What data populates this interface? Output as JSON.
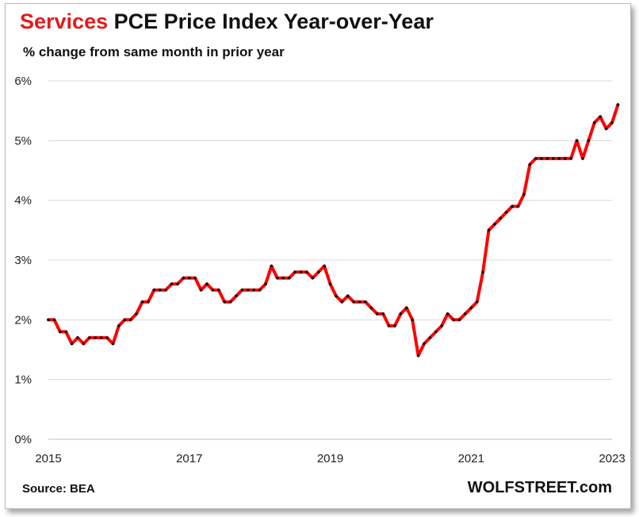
{
  "title": {
    "highlight": "Services",
    "rest": " PCE Price Index Year-over-Year"
  },
  "subtitle": "% change from same month in prior year",
  "source": "Source: BEA",
  "brand": "WOLFSTREET.com",
  "colors": {
    "line": "#ff0000",
    "highlight": "#e41b1b",
    "grid": "#d9d9d9",
    "marker": "#111111"
  },
  "chart_data": {
    "type": "line",
    "title": "Services PCE Price Index Year-over-Year",
    "subtitle": "% change from same month in prior year",
    "ylim": [
      0,
      6
    ],
    "yticks": [
      0,
      1,
      2,
      3,
      4,
      5,
      6
    ],
    "ytick_labels": [
      "0%",
      "1%",
      "2%",
      "3%",
      "4%",
      "5%",
      "6%"
    ],
    "xlim": [
      2015.0,
      2023.0
    ],
    "xticks": [
      2015,
      2017,
      2019,
      2021,
      2023
    ],
    "xtick_labels": [
      "2015",
      "2017",
      "2019",
      "2021",
      "2023"
    ],
    "grid": "horizontal",
    "legend": "none",
    "series": [
      {
        "x_start": "2015-01",
        "frequency": "monthly",
        "values": [
          2.0,
          2.0,
          1.8,
          1.8,
          1.6,
          1.7,
          1.6,
          1.7,
          1.7,
          1.7,
          1.7,
          1.6,
          1.9,
          2.0,
          2.0,
          2.1,
          2.3,
          2.3,
          2.5,
          2.5,
          2.5,
          2.6,
          2.6,
          2.7,
          2.7,
          2.7,
          2.5,
          2.6,
          2.5,
          2.5,
          2.3,
          2.3,
          2.4,
          2.5,
          2.5,
          2.5,
          2.5,
          2.6,
          2.9,
          2.7,
          2.7,
          2.7,
          2.8,
          2.8,
          2.8,
          2.7,
          2.8,
          2.9,
          2.6,
          2.4,
          2.3,
          2.4,
          2.3,
          2.3,
          2.3,
          2.2,
          2.1,
          2.1,
          1.9,
          1.9,
          2.1,
          2.2,
          2.0,
          1.4,
          1.6,
          1.7,
          1.8,
          1.9,
          2.1,
          2.0,
          2.0,
          2.1,
          2.2,
          2.3,
          2.8,
          3.5,
          3.6,
          3.7,
          3.8,
          3.9,
          3.9,
          4.1,
          4.6,
          4.7,
          4.7,
          4.7,
          4.7,
          4.7,
          4.7,
          4.7,
          5.0,
          4.7,
          5.0,
          5.3,
          5.4,
          5.2,
          5.3,
          5.6
        ]
      }
    ]
  }
}
